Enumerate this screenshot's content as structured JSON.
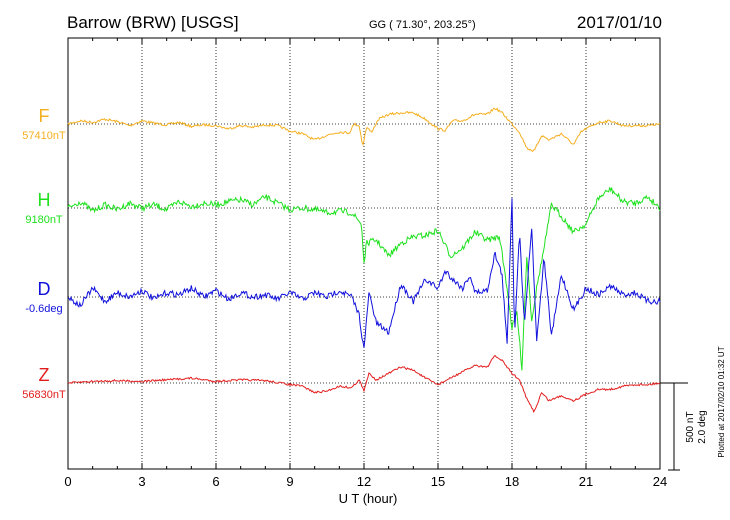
{
  "chart_data": {
    "type": "line",
    "title": "Barrow (BRW)  [USGS]",
    "coordinates": "GG ( 71.30°, 203.25°)",
    "date": "2017/01/10",
    "xlabel": "U T (hour)",
    "xlim": [
      0,
      24
    ],
    "x_ticks": [
      "0",
      "3",
      "6",
      "9",
      "12",
      "15",
      "18",
      "21",
      "24"
    ],
    "grid": true,
    "scale_bar": {
      "line1": "500 nT",
      "line2": "2.0 deg"
    },
    "plotted_note": "Plotted at 2017/02/10 01:32 UT",
    "series": [
      {
        "name": "F",
        "baseline_label": "57410nT",
        "color": "#f5b021",
        "points": [
          [
            0,
            0
          ],
          [
            0.5,
            20
          ],
          [
            1,
            10
          ],
          [
            1.5,
            30
          ],
          [
            2,
            15
          ],
          [
            2.5,
            -10
          ],
          [
            3,
            20
          ],
          [
            3.5,
            5
          ],
          [
            4,
            -5
          ],
          [
            4.5,
            10
          ],
          [
            5,
            -15
          ],
          [
            5.5,
            -5
          ],
          [
            6,
            -10
          ],
          [
            6.5,
            -30
          ],
          [
            7,
            -10
          ],
          [
            7.5,
            -20
          ],
          [
            8,
            -5
          ],
          [
            8.5,
            -10
          ],
          [
            9,
            -45
          ],
          [
            9.5,
            -60
          ],
          [
            10,
            -100
          ],
          [
            10.5,
            -70
          ],
          [
            11,
            -50
          ],
          [
            11.4,
            -55
          ],
          [
            11.6,
            0
          ],
          [
            11.8,
            -10
          ],
          [
            11.95,
            -135
          ],
          [
            12.1,
            -20
          ],
          [
            12.3,
            -50
          ],
          [
            12.6,
            30
          ],
          [
            13,
            60
          ],
          [
            13.5,
            70
          ],
          [
            14,
            70
          ],
          [
            14.5,
            30
          ],
          [
            15,
            -30
          ],
          [
            15.3,
            -40
          ],
          [
            15.6,
            20
          ],
          [
            16,
            20
          ],
          [
            16.5,
            60
          ],
          [
            17,
            60
          ],
          [
            17.3,
            100
          ],
          [
            17.6,
            70
          ],
          [
            18,
            0
          ],
          [
            18.3,
            -50
          ],
          [
            18.6,
            -150
          ],
          [
            18.9,
            -170
          ],
          [
            19.2,
            -70
          ],
          [
            19.5,
            -100
          ],
          [
            20,
            -60
          ],
          [
            20.5,
            -130
          ],
          [
            20.8,
            -50
          ],
          [
            21,
            -30
          ],
          [
            21.5,
            10
          ],
          [
            22,
            20
          ],
          [
            22.5,
            -10
          ],
          [
            23,
            -10
          ],
          [
            23.5,
            -10
          ],
          [
            24,
            0
          ]
        ]
      },
      {
        "name": "H",
        "baseline_label": "9180nT",
        "color": "#1fe11f",
        "points": [
          [
            0,
            0
          ],
          [
            0.5,
            40
          ],
          [
            1,
            -20
          ],
          [
            1.5,
            20
          ],
          [
            2,
            -10
          ],
          [
            2.5,
            30
          ],
          [
            3,
            0
          ],
          [
            3.5,
            20
          ],
          [
            4,
            -10
          ],
          [
            4.5,
            40
          ],
          [
            5,
            10
          ],
          [
            5.5,
            30
          ],
          [
            6,
            20
          ],
          [
            6.5,
            40
          ],
          [
            7,
            50
          ],
          [
            7.5,
            20
          ],
          [
            8,
            70
          ],
          [
            8.5,
            30
          ],
          [
            9,
            -10
          ],
          [
            9.5,
            0
          ],
          [
            10,
            -10
          ],
          [
            10.5,
            -30
          ],
          [
            11,
            -20
          ],
          [
            11.5,
            -30
          ],
          [
            11.9,
            -100
          ],
          [
            12,
            -350
          ],
          [
            12.1,
            -220
          ],
          [
            12.5,
            -200
          ],
          [
            13,
            -300
          ],
          [
            13.5,
            -220
          ],
          [
            14,
            -180
          ],
          [
            14.5,
            -170
          ],
          [
            15,
            -140
          ],
          [
            15.5,
            -300
          ],
          [
            16,
            -250
          ],
          [
            16.5,
            -150
          ],
          [
            17,
            -200
          ],
          [
            17.5,
            -180
          ],
          [
            17.8,
            -500
          ],
          [
            18,
            -750
          ],
          [
            18.2,
            -650
          ],
          [
            18.4,
            -1000
          ],
          [
            18.6,
            -300
          ],
          [
            18.8,
            -700
          ],
          [
            19,
            -500
          ],
          [
            19.3,
            -250
          ],
          [
            19.6,
            20
          ],
          [
            20,
            -50
          ],
          [
            20.5,
            -150
          ],
          [
            21,
            -100
          ],
          [
            21.5,
            60
          ],
          [
            22,
            120
          ],
          [
            22.5,
            40
          ],
          [
            23,
            30
          ],
          [
            23.5,
            70
          ],
          [
            24,
            0
          ]
        ]
      },
      {
        "name": "D",
        "baseline_label": "-0.6deg",
        "color": "#1111dd",
        "points": [
          [
            0,
            0
          ],
          [
            0.5,
            -0.2
          ],
          [
            1,
            0.2
          ],
          [
            1.5,
            -0.1
          ],
          [
            2,
            0.1
          ],
          [
            2.5,
            0
          ],
          [
            3,
            0.15
          ],
          [
            3.5,
            -0.05
          ],
          [
            4,
            0.1
          ],
          [
            4.5,
            0.05
          ],
          [
            5,
            0.2
          ],
          [
            5.5,
            0
          ],
          [
            6,
            0.15
          ],
          [
            6.5,
            -0.05
          ],
          [
            7,
            0.1
          ],
          [
            7.5,
            0
          ],
          [
            8,
            0.05
          ],
          [
            8.5,
            -0.05
          ],
          [
            9,
            0.1
          ],
          [
            9.5,
            -0.05
          ],
          [
            10,
            0.1
          ],
          [
            10.5,
            0
          ],
          [
            11,
            0.15
          ],
          [
            11.5,
            0
          ],
          [
            11.8,
            -0.4
          ],
          [
            12,
            -1.2
          ],
          [
            12.2,
            0.1
          ],
          [
            12.5,
            -0.6
          ],
          [
            13,
            -0.8
          ],
          [
            13.5,
            0.3
          ],
          [
            14,
            -0.1
          ],
          [
            14.5,
            0.4
          ],
          [
            15,
            0.2
          ],
          [
            15.3,
            0.6
          ],
          [
            15.6,
            0.4
          ],
          [
            16,
            0.2
          ],
          [
            16.3,
            0.5
          ],
          [
            16.5,
            0.1
          ],
          [
            17,
            0.15
          ],
          [
            17.3,
            1.0
          ],
          [
            17.6,
            0.5
          ],
          [
            17.8,
            -1.1
          ],
          [
            18,
            2.3
          ],
          [
            18.1,
            -0.9
          ],
          [
            18.3,
            1.5
          ],
          [
            18.5,
            -0.6
          ],
          [
            18.8,
            1.6
          ],
          [
            19,
            -1.0
          ],
          [
            19.3,
            0.9
          ],
          [
            19.6,
            -0.9
          ],
          [
            20,
            0.5
          ],
          [
            20.5,
            -0.3
          ],
          [
            21,
            0.2
          ],
          [
            21.5,
            0.05
          ],
          [
            22,
            0.25
          ],
          [
            22.5,
            0.05
          ],
          [
            23,
            0.1
          ],
          [
            23.5,
            -0.1
          ],
          [
            24,
            -0.1
          ]
        ]
      },
      {
        "name": "Z",
        "baseline_label": "56830nT",
        "color": "#e21d1d",
        "points": [
          [
            0,
            0
          ],
          [
            1,
            10
          ],
          [
            2,
            15
          ],
          [
            3,
            10
          ],
          [
            4,
            20
          ],
          [
            5,
            30
          ],
          [
            6,
            10
          ],
          [
            7,
            20
          ],
          [
            8,
            15
          ],
          [
            9,
            -10
          ],
          [
            9.5,
            -20
          ],
          [
            10,
            -60
          ],
          [
            10.5,
            -50
          ],
          [
            11,
            -20
          ],
          [
            11.5,
            -30
          ],
          [
            11.8,
            20
          ],
          [
            12,
            -50
          ],
          [
            12.2,
            60
          ],
          [
            12.5,
            20
          ],
          [
            13,
            60
          ],
          [
            13.5,
            100
          ],
          [
            14,
            80
          ],
          [
            14.5,
            30
          ],
          [
            15,
            -10
          ],
          [
            15.5,
            30
          ],
          [
            16,
            70
          ],
          [
            16.5,
            110
          ],
          [
            17,
            100
          ],
          [
            17.3,
            170
          ],
          [
            17.6,
            140
          ],
          [
            18,
            60
          ],
          [
            18.3,
            20
          ],
          [
            18.6,
            -100
          ],
          [
            18.9,
            -180
          ],
          [
            19.2,
            -60
          ],
          [
            19.5,
            -110
          ],
          [
            20,
            -80
          ],
          [
            20.5,
            -110
          ],
          [
            21,
            -70
          ],
          [
            21.5,
            -40
          ],
          [
            22,
            -40
          ],
          [
            22.5,
            -20
          ],
          [
            23,
            -10
          ],
          [
            23.5,
            -10
          ],
          [
            24,
            0
          ]
        ]
      }
    ]
  }
}
